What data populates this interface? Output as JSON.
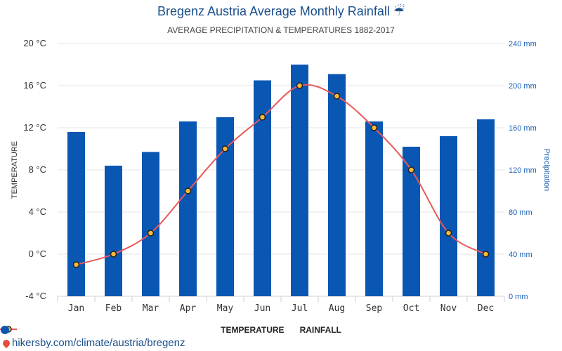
{
  "header": {
    "title": "Bregenz Austria Average Monthly Rainfall",
    "title_icon": "umbrella-rain-icon",
    "subtitle": "AVERAGE PRECIPITATION & TEMPERATURES 1882-2017"
  },
  "legend": {
    "temperature": "TEMPERATURE",
    "rainfall": "RAINFALL"
  },
  "footer": {
    "link": "hikersby.com/climate/austria/bregenz"
  },
  "colors": {
    "bar": "#0a56b3",
    "line": "#e85a5a",
    "point": "#f6b93b",
    "title": "#1a4f8b"
  },
  "chart_data": {
    "type": "bar",
    "categories": [
      "Jan",
      "Feb",
      "Mar",
      "Apr",
      "May",
      "Jun",
      "Jul",
      "Aug",
      "Sep",
      "Oct",
      "Nov",
      "Dec"
    ],
    "series": [
      {
        "name": "RAINFALL",
        "type": "bar",
        "axis": "right",
        "unit": "mm",
        "values": [
          156,
          124,
          137,
          166,
          170,
          205,
          220,
          211,
          166,
          142,
          152,
          168
        ]
      },
      {
        "name": "TEMPERATURE",
        "type": "line",
        "axis": "left",
        "unit": "°C",
        "values": [
          -1,
          0,
          2,
          6,
          10,
          13,
          16,
          15,
          12,
          8,
          2,
          0
        ]
      }
    ],
    "ylabel": "TEMPERATURE",
    "y2label": "Precipitation",
    "ylim": [
      -4,
      20
    ],
    "y2lim": [
      0,
      240
    ],
    "yticks": [
      "-4 °C",
      "0 °C",
      "4 °C",
      "8 °C",
      "12 °C",
      "16 °C",
      "20 °C"
    ],
    "y2ticks": [
      "0 mm",
      "40 mm",
      "80 mm",
      "120 mm",
      "160 mm",
      "200 mm",
      "240 mm"
    ],
    "grid": true,
    "legend_position": "bottom"
  }
}
